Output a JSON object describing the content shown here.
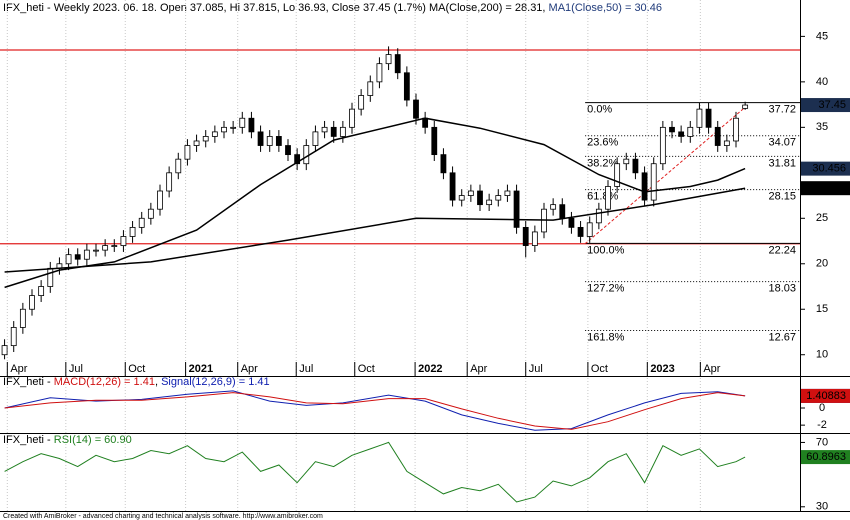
{
  "header": {
    "parts": [
      {
        "text": "IFX_heti - Weekly 2023. 06. 18. Open 37.085, Hi 37.815, Lo 36.93, Close 37.45 (1.7%) MA(Close,200) = 28.31, ",
        "color": "#000000"
      },
      {
        "text": "MA1(Close,50) = 30.46",
        "color": "#1f3a7a"
      }
    ]
  },
  "footer": "Created with AmiBroker - advanced charting and technical analysis software. http://www.amibroker.com",
  "chart_data": [
    {
      "type": "candlestick",
      "xlim": [
        -0.5,
        87
      ],
      "xticks": [
        {
          "value": 0.3,
          "label": "Apr"
        },
        {
          "value": 6.7,
          "label": "Jul"
        },
        {
          "value": 13.2,
          "label": "Oct"
        },
        {
          "value": 19.8,
          "label": "2021"
        },
        {
          "value": 25.5,
          "label": "Apr"
        },
        {
          "value": 31.9,
          "label": "Jul"
        },
        {
          "value": 38.3,
          "label": "Oct"
        },
        {
          "value": 44.9,
          "label": "2022"
        },
        {
          "value": 50.6,
          "label": "Apr"
        },
        {
          "value": 57.0,
          "label": "Jul"
        },
        {
          "value": 63.8,
          "label": "Oct"
        },
        {
          "value": 70.3,
          "label": "2023"
        },
        {
          "value": 76.1,
          "label": "Apr"
        }
      ],
      "ylim": [
        9.2,
        49
      ],
      "yticks": [
        10,
        15,
        20,
        25,
        30,
        35,
        40,
        45
      ],
      "up_color": "#ffffff",
      "down_color": "#000000",
      "open": [
        10.0,
        11,
        13,
        15,
        16.5,
        17.5,
        19.5,
        20,
        21,
        20.5,
        21.5,
        21.5,
        22,
        22,
        23,
        24,
        25,
        26,
        28,
        30,
        31.5,
        33,
        33.5,
        34,
        34.5,
        35,
        35,
        36,
        34.5,
        33,
        34,
        33,
        32,
        31,
        33,
        34.5,
        35,
        34,
        35,
        37,
        38.5,
        40,
        42,
        43,
        41,
        38,
        36,
        35,
        32,
        30,
        27,
        27.5,
        28,
        26.5,
        27,
        27.5,
        28,
        24,
        22,
        23.5,
        26,
        26.5,
        25,
        24,
        23,
        24.5,
        26,
        28.5,
        31,
        31.5,
        30,
        27,
        31,
        35,
        34.5,
        34,
        35,
        37,
        35,
        33,
        33.5,
        37.085
      ],
      "high": [
        11.7,
        13.7,
        15.7,
        17.2,
        18.2,
        20.2,
        20.7,
        21.7,
        21.7,
        22.2,
        22.2,
        22.7,
        22.7,
        23.7,
        24.7,
        25.7,
        26.7,
        28.7,
        30.7,
        32.2,
        33.7,
        34.2,
        34.7,
        35.2,
        35.7,
        35.7,
        36.7,
        36.7,
        35.2,
        34.7,
        34.7,
        33.7,
        32.7,
        33.7,
        35.2,
        35.7,
        35.7,
        35.7,
        37.7,
        39.2,
        40.7,
        42.7,
        43.9,
        43.7,
        41.7,
        38.7,
        36.7,
        35.7,
        32.7,
        30.7,
        28.2,
        28.7,
        28.7,
        27.7,
        28.2,
        28.7,
        28.7,
        24.7,
        24.2,
        26.7,
        27.2,
        27.2,
        25.7,
        24.7,
        25.2,
        26.7,
        29.2,
        31.7,
        32.2,
        32.2,
        30.7,
        31.7,
        35.7,
        35.7,
        35.2,
        35.7,
        37.7,
        37.7,
        35.7,
        34.2,
        36.7,
        37.815
      ],
      "low": [
        9.5,
        10.3,
        12.3,
        14.3,
        15.8,
        16.8,
        18.8,
        19.3,
        19.8,
        19.8,
        20.8,
        20.8,
        21.3,
        21.3,
        22.3,
        23.3,
        24.3,
        25.3,
        27.3,
        29.3,
        30.8,
        32.3,
        32.8,
        33.3,
        33.8,
        34.3,
        34.3,
        33.8,
        32.3,
        32.3,
        32.3,
        31.3,
        30.3,
        30.3,
        32.3,
        33.8,
        33.3,
        33.3,
        34.3,
        36.3,
        37.8,
        39.3,
        41.3,
        40.3,
        37.3,
        35.3,
        34.3,
        31.3,
        29.3,
        26.3,
        26.3,
        26.8,
        25.8,
        25.8,
        26.3,
        26.8,
        23.3,
        20.7,
        21.3,
        22.8,
        25.3,
        24.3,
        23.3,
        22.3,
        22.3,
        23.8,
        25.3,
        27.8,
        30.3,
        29.3,
        26.3,
        26.3,
        30.3,
        33.8,
        33.3,
        33.3,
        34.3,
        34.3,
        32.3,
        32.3,
        32.8,
        36.93
      ],
      "close": [
        11,
        13,
        15,
        16.5,
        17.5,
        19.5,
        20,
        21,
        20.5,
        21.5,
        21.5,
        22,
        22,
        23,
        24,
        25,
        26,
        28,
        30,
        31.5,
        33,
        33.5,
        34,
        34.5,
        35,
        35,
        36,
        34.5,
        33,
        34,
        33,
        32,
        31,
        33,
        34.5,
        35,
        34,
        35,
        37,
        38.5,
        40,
        42,
        43,
        41,
        38,
        36,
        35,
        32,
        30,
        27,
        27.5,
        28,
        26.5,
        27,
        27.5,
        28,
        24,
        22,
        23.5,
        26,
        26.5,
        25,
        24,
        23,
        24.5,
        26,
        28.5,
        31,
        31.5,
        30,
        27,
        31,
        35,
        34.5,
        34,
        35,
        37,
        35,
        33,
        33.5,
        36.0,
        37.45
      ],
      "close_label": "37.45",
      "close_badge_color": "#1c2f50",
      "series": [
        {
          "name": "MA1(Close,50)",
          "color": "#000000",
          "badge": "30.456",
          "badge_color": "#1c2f50",
          "x": [
            0,
            6,
            12,
            21,
            28,
            36,
            46,
            52,
            59,
            65,
            70,
            75,
            78,
            81
          ],
          "values": [
            17.4,
            19.3,
            20.2,
            23.7,
            28.7,
            33.6,
            36.0,
            34.9,
            33.1,
            29.8,
            27.9,
            28.5,
            29.2,
            30.46
          ]
        },
        {
          "name": "MA(Close,200)",
          "color": "#000000",
          "badge": "28.3105",
          "badge_color": "#000000",
          "x": [
            0,
            16,
            31,
            45,
            60,
            71,
            81
          ],
          "values": [
            19.1,
            20.2,
            22.6,
            25.0,
            24.8,
            26.5,
            28.31
          ]
        }
      ],
      "hlines": [
        {
          "value": 43.5,
          "color": "#e02020"
        },
        {
          "value": 22.2,
          "color": "#e02020"
        }
      ],
      "trendline": {
        "color": "#e02020",
        "x": [
          63.5,
          81
        ],
        "values": [
          22.2,
          37.2
        ]
      },
      "fib_start": 63.5,
      "fib": [
        {
          "label": "0.0%",
          "value": 37.72
        },
        {
          "label": "23.6%",
          "value": 34.07
        },
        {
          "label": "38.2%",
          "value": 31.81
        },
        {
          "label": "61.8%",
          "value": 28.15
        },
        {
          "label": "100.0%",
          "value": 22.24
        },
        {
          "label": "127.2%",
          "value": 18.03
        },
        {
          "label": "161.8%",
          "value": 12.67
        }
      ]
    },
    {
      "type": "line",
      "title_parts": [
        {
          "text": "IFX_heti - ",
          "color": "#000000"
        },
        {
          "text": "MACD(12,26) = 1.41",
          "color": "#d01010"
        },
        {
          "text": ", ",
          "color": "#000000"
        },
        {
          "text": "Signal(12,26,9) = 1.41",
          "color": "#1020b0"
        }
      ],
      "ylim": [
        -2.8,
        3.5
      ],
      "yticks": [
        -2,
        0
      ],
      "series": [
        {
          "name": "MACD",
          "color": "#1020b0",
          "badge": "1.41354",
          "badge_color": "#1020b0",
          "x": [
            0,
            5,
            10,
            15,
            20,
            25,
            29,
            33,
            37,
            42,
            46,
            50,
            54,
            58,
            62,
            66,
            70,
            74,
            78,
            81
          ],
          "values": [
            0,
            1.2,
            0.8,
            1.0,
            1.6,
            2.0,
            0.8,
            0.3,
            0.6,
            1.5,
            0.8,
            -0.8,
            -1.8,
            -2.6,
            -2.4,
            -0.8,
            0.6,
            1.7,
            1.9,
            1.41
          ]
        },
        {
          "name": "Signal",
          "color": "#d01010",
          "badge": "1.40883",
          "badge_color": "#d01010",
          "x": [
            0,
            5,
            10,
            15,
            20,
            25,
            29,
            33,
            37,
            42,
            46,
            50,
            54,
            58,
            62,
            66,
            70,
            74,
            78,
            81
          ],
          "values": [
            0,
            0.6,
            0.9,
            0.9,
            1.3,
            1.8,
            1.3,
            0.6,
            0.5,
            1.1,
            1.1,
            -0.1,
            -1.2,
            -2.1,
            -2.5,
            -1.6,
            -0.2,
            1.1,
            1.8,
            1.41
          ]
        }
      ]
    },
    {
      "type": "line",
      "title_parts": [
        {
          "text": "IFX_heti - ",
          "color": "#000000"
        },
        {
          "text": "RSI(14) = 60.90",
          "color": "#208020"
        }
      ],
      "ylim": [
        28,
        74
      ],
      "yticks": [
        30,
        70
      ],
      "series": [
        {
          "name": "RSI",
          "color": "#208020",
          "badge": "60.8963",
          "badge_color": "#208020",
          "x": [
            0,
            2,
            4,
            6,
            8,
            10,
            12,
            14,
            16,
            18,
            20,
            22,
            24,
            26,
            28,
            30,
            32,
            34,
            36,
            38,
            40,
            42,
            44,
            46,
            48,
            50,
            52,
            54,
            56,
            58,
            60,
            62,
            64,
            66,
            68,
            70,
            72,
            74,
            76,
            78,
            80,
            81
          ],
          "values": [
            52,
            58,
            63,
            60,
            55,
            62,
            58,
            60,
            65,
            63,
            68,
            60,
            58,
            64,
            52,
            56,
            45,
            58,
            55,
            62,
            66,
            70,
            52,
            45,
            38,
            42,
            40,
            44,
            33,
            36,
            46,
            43,
            48,
            58,
            63,
            45,
            68,
            62,
            66,
            55,
            58,
            60.9
          ]
        }
      ]
    }
  ]
}
